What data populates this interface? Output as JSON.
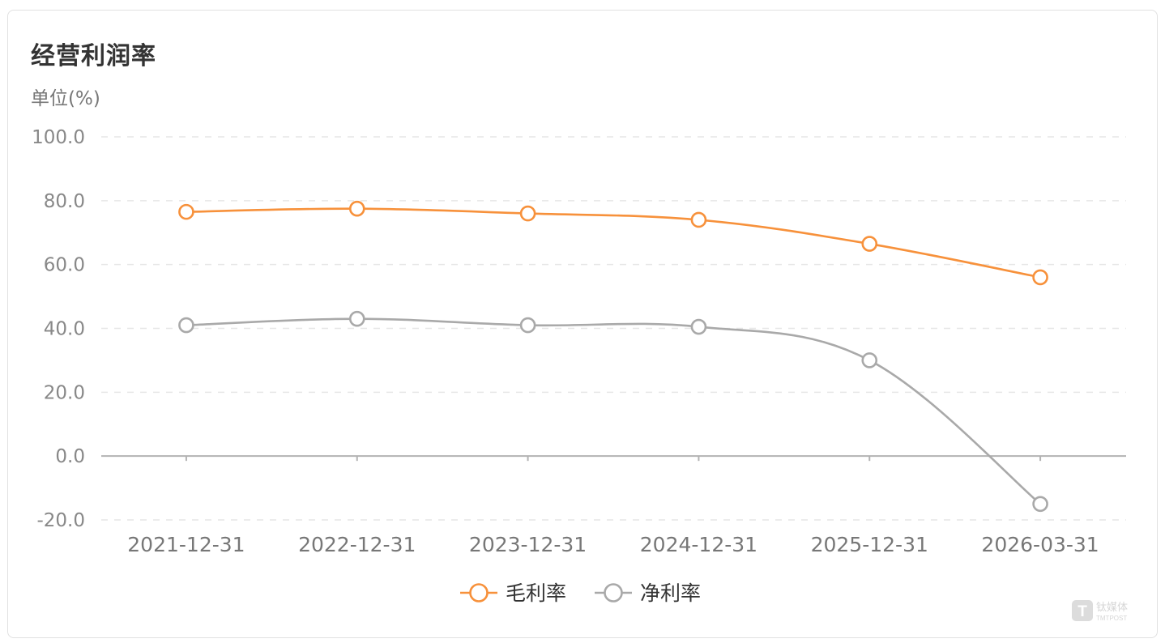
{
  "chart_data": {
    "type": "line",
    "title": "经营利润率",
    "ylabel": "单位(%)",
    "categories": [
      "2021-12-31",
      "2022-12-31",
      "2023-12-31",
      "2024-12-31",
      "2025-12-31",
      "2026-03-31"
    ],
    "series": [
      {
        "name": "毛利率",
        "values": [
          76.5,
          77.5,
          76.0,
          74.0,
          66.5,
          56.0
        ],
        "color": "#f7913b"
      },
      {
        "name": "净利率",
        "values": [
          41.0,
          43.0,
          41.0,
          40.5,
          30.0,
          -15.0
        ],
        "color": "#a9a9a9"
      }
    ],
    "yticks": [
      "100.0",
      "80.0",
      "60.0",
      "40.0",
      "20.0",
      "0.0",
      "-20.0"
    ],
    "ylim": [
      -20,
      100
    ],
    "grid": true,
    "legend_position": "bottom-center",
    "smooth": true
  },
  "watermark": {
    "icon": "tmtpost-logo",
    "text": "钛媒体",
    "subtext": "TMTPOST"
  }
}
